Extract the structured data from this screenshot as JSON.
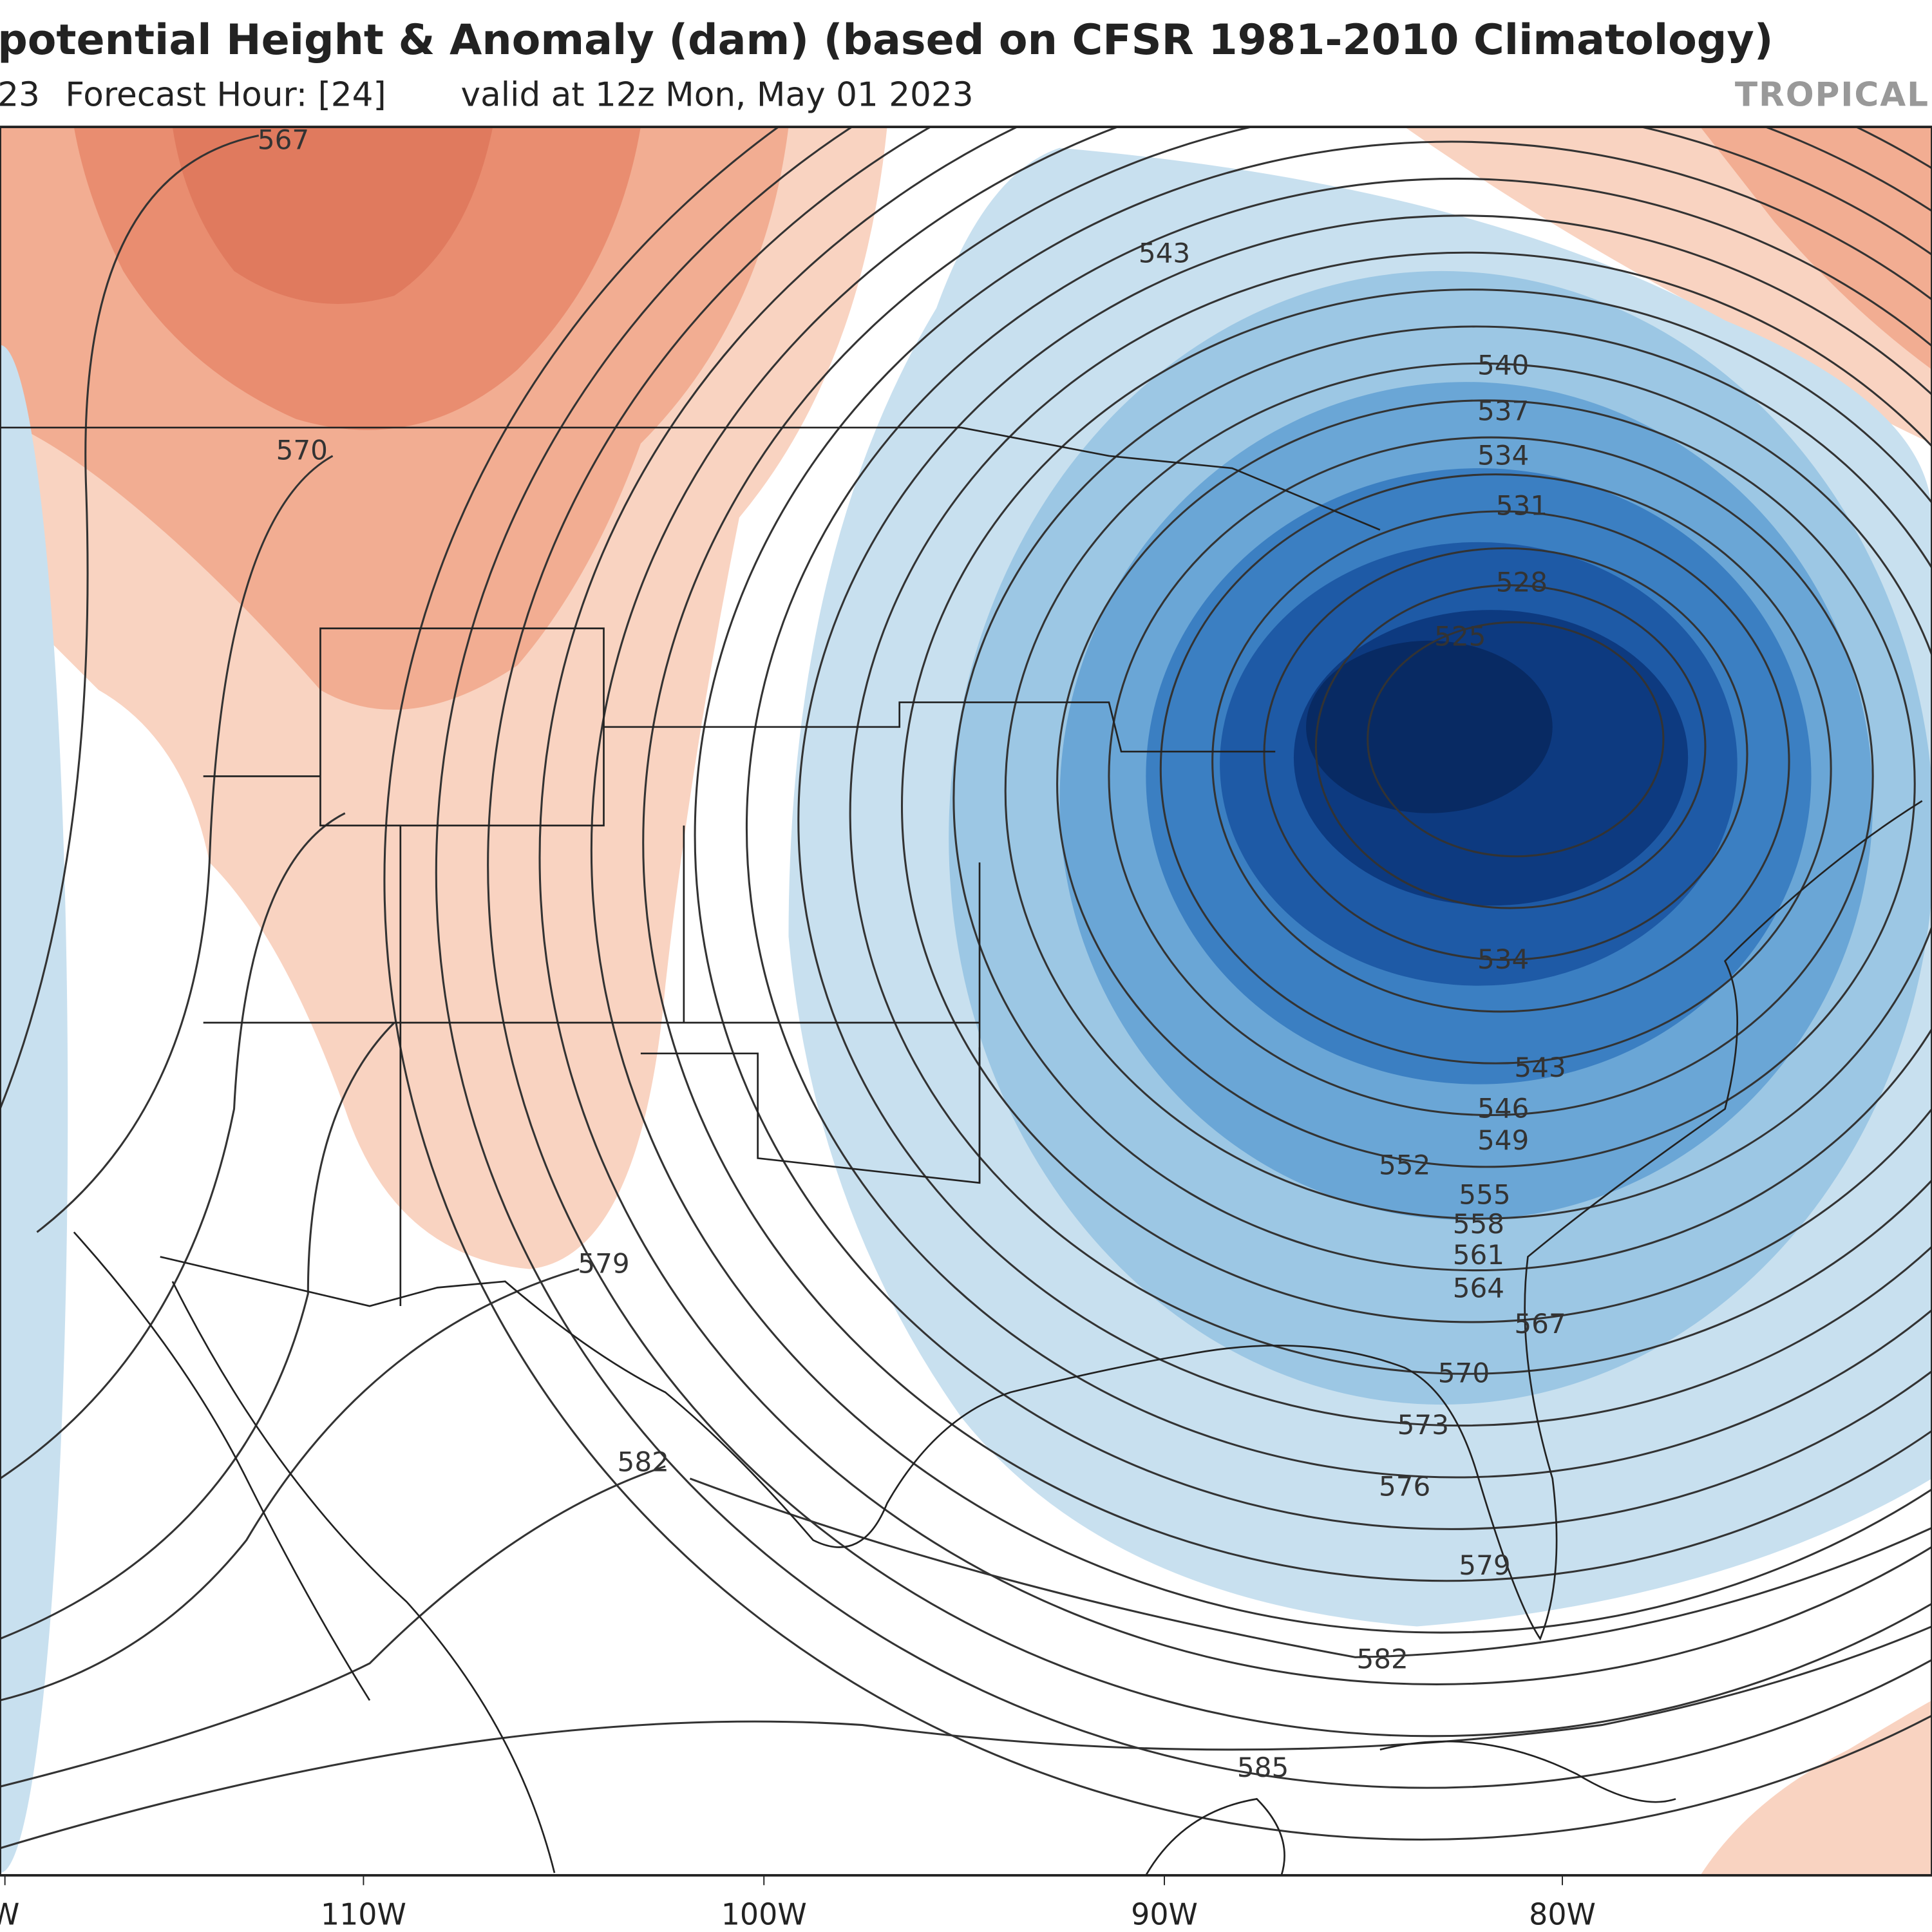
{
  "header": {
    "title": "potential Height & Anomaly (dam) (based on CFSR 1981-2010 Climatology)",
    "init": "23",
    "forecast_hour": "Forecast Hour: [24]",
    "valid": "valid at 12z Mon, May 01 2023",
    "brand": "TROPICAL"
  },
  "contour_labels": [
    "567",
    "570",
    "543",
    "540",
    "537",
    "534",
    "531",
    "528",
    "525",
    "534",
    "543",
    "546",
    "549",
    "552",
    "555",
    "558",
    "561",
    "564",
    "567",
    "570",
    "573",
    "576",
    "579",
    "579",
    "582",
    "582",
    "585"
  ],
  "longitude_labels": [
    "W",
    "110W",
    "100W",
    "90W",
    "80W"
  ]
}
